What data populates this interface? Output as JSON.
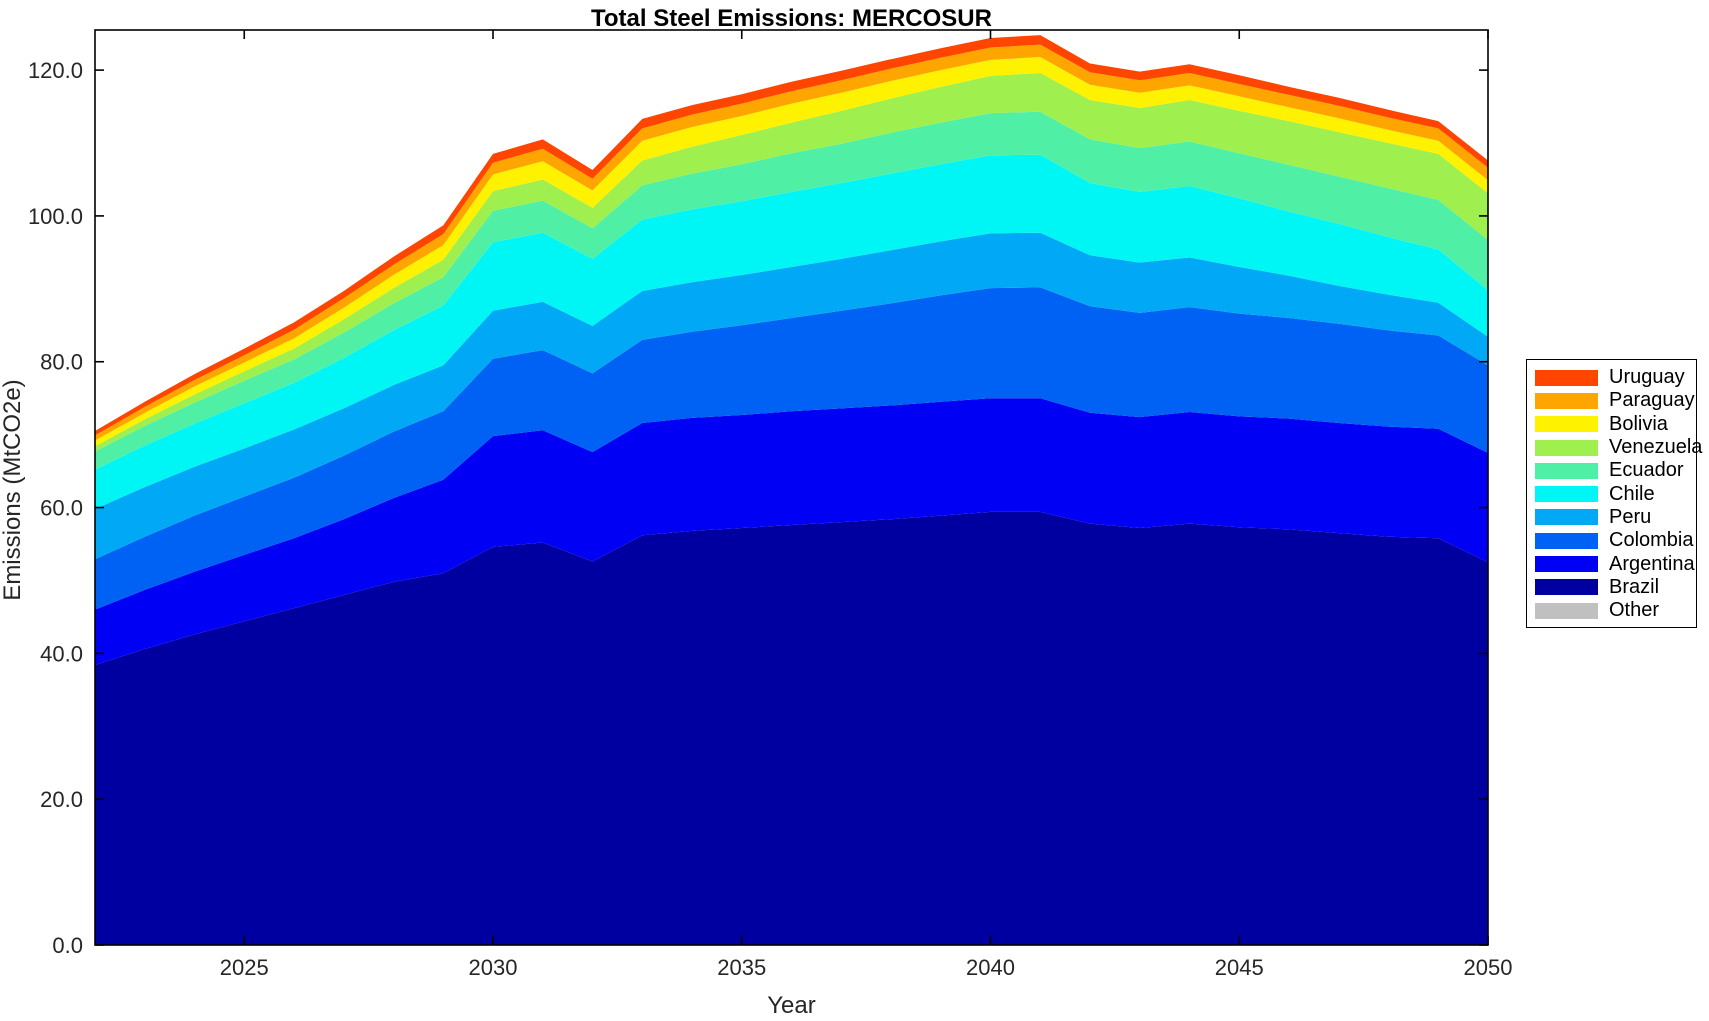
{
  "figure": {
    "title": "Total Steel Emissions: MERCOSUR",
    "xlabel": "Year",
    "ylabel": "Emissions (MtCO2e)"
  },
  "axes": {
    "xlim": [
      2022,
      2050
    ],
    "ylim": [
      0,
      125.5
    ],
    "xticks": [
      2025,
      2030,
      2035,
      2040,
      2045,
      2050
    ],
    "xtick_labels": [
      "2025",
      "2030",
      "2035",
      "2040",
      "2045",
      "2050"
    ],
    "yticks": [
      0,
      20,
      40,
      60,
      80,
      100,
      120
    ],
    "ytick_labels": [
      "0.0",
      "20.0",
      "40.0",
      "60.0",
      "80.0",
      "100.0",
      "120.0"
    ],
    "frame_color": "#000000",
    "tick_label_color": "#262626"
  },
  "legend": {
    "position": "right",
    "border_color": "#000000"
  },
  "chart_data": {
    "type": "area",
    "stacked": true,
    "title": "Total Steel Emissions: MERCOSUR",
    "xlabel": "Year",
    "ylabel": "Emissions (MtCO2e)",
    "xlim": [
      2022,
      2050
    ],
    "ylim": [
      0,
      125.5
    ],
    "grid": false,
    "legend_position": "right-outside",
    "x": [
      2022,
      2023,
      2024,
      2025,
      2026,
      2027,
      2028,
      2029,
      2030,
      2031,
      2032,
      2033,
      2034,
      2035,
      2036,
      2037,
      2038,
      2039,
      2040,
      2041,
      2042,
      2043,
      2044,
      2045,
      2046,
      2047,
      2048,
      2049,
      2050
    ],
    "series_note": "listed in legend order (top of stack first); stacking order on chart is bottom-up from the last entry",
    "series": [
      {
        "name": "Uruguay",
        "color": "#FF4500",
        "values": [
          0.6,
          0.7,
          0.8,
          0.9,
          1.0,
          1.0,
          1.1,
          1.2,
          1.2,
          1.3,
          1.2,
          1.3,
          1.3,
          1.3,
          1.3,
          1.3,
          1.3,
          1.3,
          1.3,
          1.3,
          1.2,
          1.2,
          1.2,
          1.2,
          1.1,
          1.1,
          1.05,
          1.0,
          1.0
        ]
      },
      {
        "name": "Paraguay",
        "color": "#FFA500",
        "values": [
          0.7,
          0.8,
          0.9,
          1.0,
          1.2,
          1.3,
          1.4,
          1.5,
          1.6,
          1.7,
          1.6,
          1.7,
          1.7,
          1.7,
          1.7,
          1.7,
          1.7,
          1.7,
          1.7,
          1.7,
          1.7,
          1.7,
          1.7,
          1.7,
          1.7,
          1.7,
          1.7,
          1.7,
          1.7
        ]
      },
      {
        "name": "Bolivia",
        "color": "#FFF200",
        "values": [
          0.8,
          0.9,
          1.1,
          1.2,
          1.4,
          1.6,
          1.8,
          2.0,
          2.3,
          2.5,
          2.4,
          2.7,
          2.7,
          2.6,
          2.6,
          2.5,
          2.4,
          2.3,
          2.2,
          2.2,
          2.1,
          2.1,
          2.0,
          2.0,
          1.9,
          1.9,
          1.8,
          1.8,
          1.8
        ]
      },
      {
        "name": "Venezuela",
        "color": "#9FEF4F",
        "values": [
          0.7,
          0.9,
          1.1,
          1.3,
          1.5,
          1.8,
          2.1,
          2.4,
          2.7,
          2.9,
          2.8,
          3.4,
          3.7,
          4.0,
          4.2,
          4.5,
          4.7,
          4.9,
          5.1,
          5.3,
          5.4,
          5.5,
          5.7,
          5.8,
          6.0,
          6.1,
          6.2,
          6.3,
          6.4
        ]
      },
      {
        "name": "Ecuador",
        "color": "#4FF0A6",
        "values": [
          2.5,
          2.7,
          2.9,
          3.1,
          3.2,
          3.5,
          3.7,
          3.9,
          4.3,
          4.4,
          4.2,
          4.7,
          4.9,
          5.1,
          5.3,
          5.4,
          5.6,
          5.7,
          5.8,
          5.9,
          6.0,
          6.0,
          6.1,
          6.2,
          6.4,
          6.5,
          6.7,
          6.8,
          6.9
        ]
      },
      {
        "name": "Chile",
        "color": "#00F5F5",
        "values": [
          5.4,
          5.7,
          5.9,
          6.2,
          6.4,
          6.9,
          7.5,
          8.2,
          9.4,
          9.5,
          9.2,
          9.8,
          10.0,
          10.1,
          10.3,
          10.4,
          10.5,
          10.6,
          10.7,
          10.7,
          9.9,
          9.7,
          9.8,
          9.4,
          8.8,
          8.5,
          7.9,
          7.3,
          6.4
        ]
      },
      {
        "name": "Peru",
        "color": "#00A8F5",
        "values": [
          6.9,
          6.8,
          6.7,
          6.6,
          6.6,
          6.5,
          6.4,
          6.3,
          6.6,
          6.6,
          6.5,
          6.7,
          6.8,
          6.9,
          7.0,
          7.1,
          7.3,
          7.4,
          7.5,
          7.5,
          7.0,
          6.9,
          6.8,
          6.4,
          5.8,
          5.2,
          4.9,
          4.5,
          3.9
        ]
      },
      {
        "name": "Colombia",
        "color": "#0062F5",
        "values": [
          6.9,
          7.3,
          7.7,
          8.0,
          8.3,
          8.7,
          9.1,
          9.4,
          10.6,
          11.0,
          10.8,
          11.4,
          11.8,
          12.3,
          12.8,
          13.4,
          14.0,
          14.6,
          15.1,
          15.2,
          14.6,
          14.3,
          14.4,
          14.1,
          13.8,
          13.6,
          13.2,
          12.8,
          12.0
        ]
      },
      {
        "name": "Argentina",
        "color": "#0000F5",
        "values": [
          7.6,
          8.1,
          8.6,
          9.1,
          9.6,
          10.4,
          11.5,
          12.8,
          15.2,
          15.4,
          15.0,
          15.4,
          15.5,
          15.5,
          15.6,
          15.6,
          15.6,
          15.6,
          15.6,
          15.6,
          15.2,
          15.2,
          15.3,
          15.2,
          15.2,
          15.1,
          15.1,
          15.0,
          15.0
        ]
      },
      {
        "name": "Brazil",
        "color": "#0000A0",
        "values": [
          38.4,
          40.6,
          42.6,
          44.4,
          46.2,
          48.0,
          49.8,
          51.0,
          54.6,
          55.2,
          52.6,
          56.2,
          56.8,
          57.2,
          57.6,
          58.0,
          58.4,
          58.9,
          59.4,
          59.4,
          57.8,
          57.2,
          57.8,
          57.3,
          57.0,
          56.5,
          56.0,
          55.8,
          52.5
        ]
      },
      {
        "name": "Other",
        "color": "#C0C0C0",
        "values": [
          0,
          0,
          0,
          0,
          0,
          0,
          0,
          0,
          0,
          0,
          0,
          0,
          0,
          0,
          0,
          0,
          0,
          0,
          0,
          0,
          0,
          0,
          0,
          0,
          0,
          0,
          0,
          0,
          0
        ]
      }
    ]
  }
}
